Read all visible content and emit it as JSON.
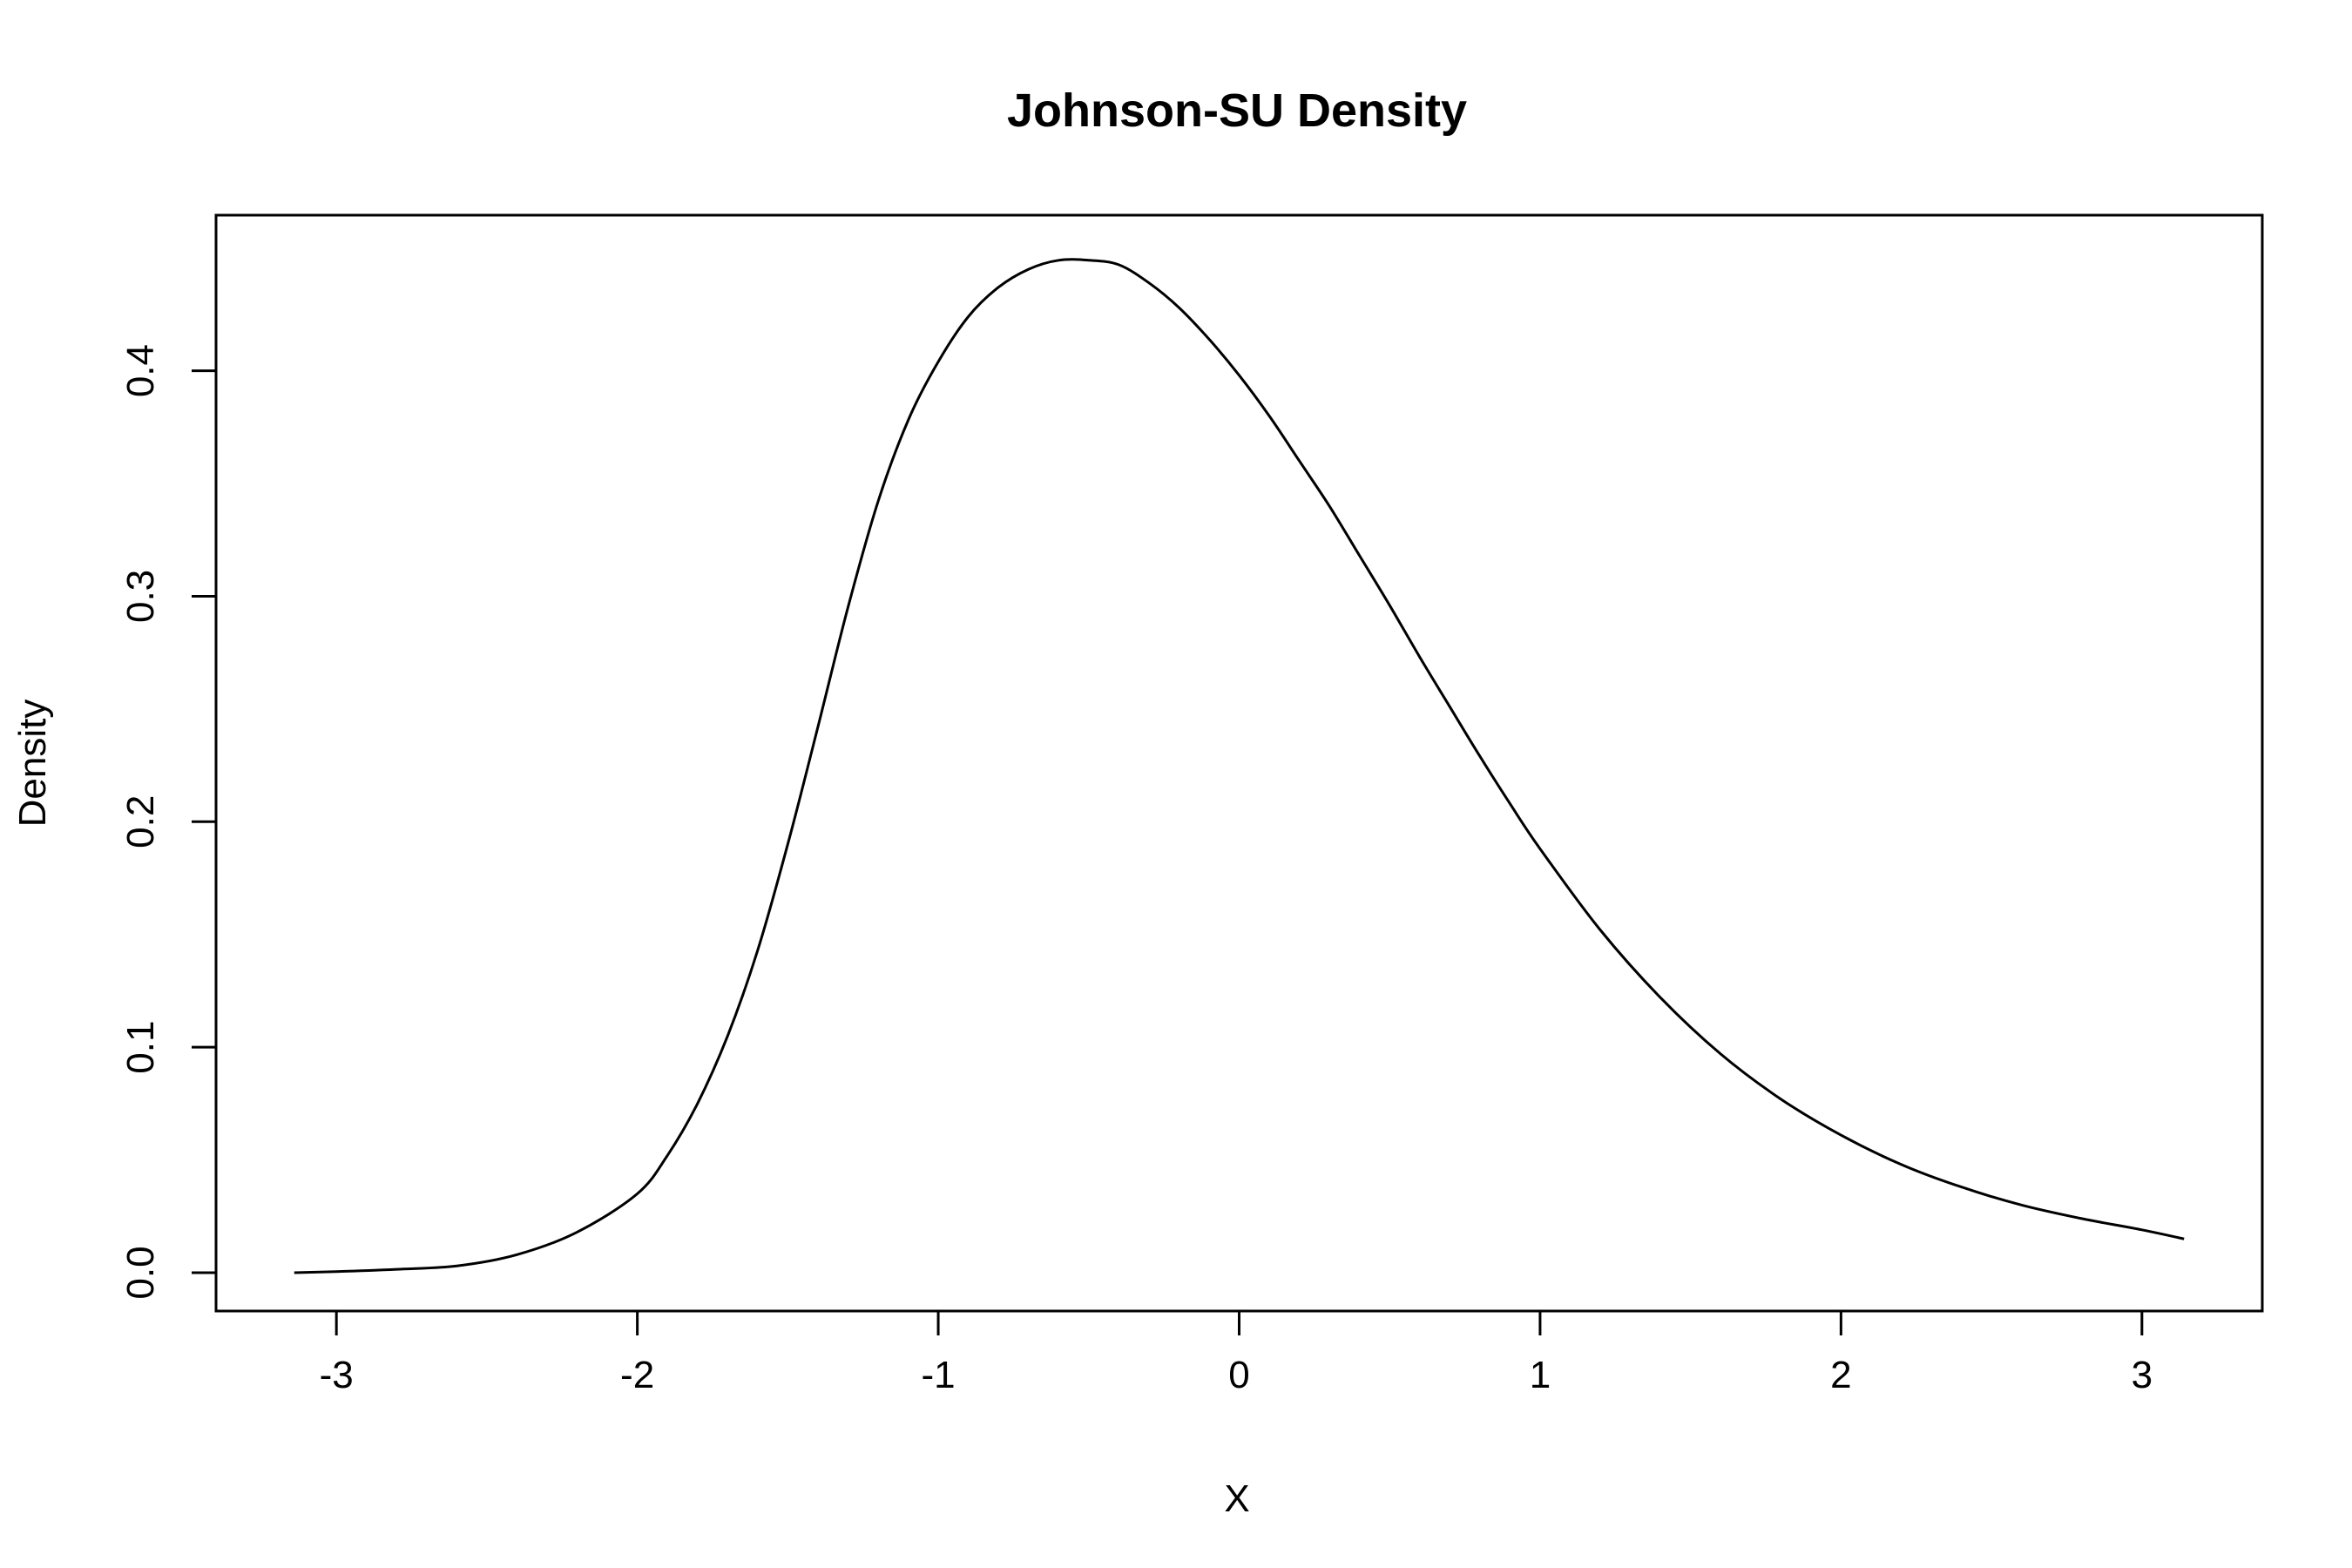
{
  "chart_data": {
    "type": "line",
    "title": "Johnson-SU Density",
    "xlabel": "X",
    "ylabel": "Density",
    "xlim": [
      -3.4,
      3.4
    ],
    "ylim": [
      -0.017,
      0.469
    ],
    "x_ticks": [
      -3,
      -2,
      -1,
      0,
      1,
      2,
      3
    ],
    "x_tick_labels": [
      "-3",
      "-2",
      "-1",
      "0",
      "1",
      "2",
      "3"
    ],
    "y_ticks": [
      0.0,
      0.1,
      0.2,
      0.3,
      0.4
    ],
    "y_tick_labels": [
      "0.0",
      "0.1",
      "0.2",
      "0.3",
      "0.4"
    ],
    "grid": false,
    "series": [
      {
        "x": [
          -3.14,
          -3.0,
          -2.8,
          -2.6,
          -2.4,
          -2.2,
          -2.0,
          -1.9,
          -1.8,
          -1.7,
          -1.6,
          -1.5,
          -1.4,
          -1.3,
          -1.2,
          -1.1,
          -1.0,
          -0.9,
          -0.8,
          -0.7,
          -0.6,
          -0.5,
          -0.4,
          -0.3,
          -0.2,
          -0.1,
          0.0,
          0.1,
          0.2,
          0.3,
          0.4,
          0.5,
          0.6,
          0.7,
          0.8,
          0.9,
          1.0,
          1.2,
          1.4,
          1.6,
          1.8,
          2.0,
          2.2,
          2.4,
          2.6,
          2.8,
          3.0,
          3.14
        ],
        "y": [
          0.0,
          0.0005,
          0.0015,
          0.003,
          0.008,
          0.018,
          0.035,
          0.052,
          0.075,
          0.105,
          0.143,
          0.19,
          0.242,
          0.295,
          0.342,
          0.378,
          0.404,
          0.424,
          0.437,
          0.445,
          0.449,
          0.449,
          0.447,
          0.439,
          0.428,
          0.414,
          0.398,
          0.38,
          0.36,
          0.34,
          0.318,
          0.296,
          0.273,
          0.251,
          0.229,
          0.208,
          0.188,
          0.152,
          0.122,
          0.097,
          0.077,
          0.061,
          0.048,
          0.038,
          0.03,
          0.024,
          0.019,
          0.015
        ]
      }
    ]
  }
}
